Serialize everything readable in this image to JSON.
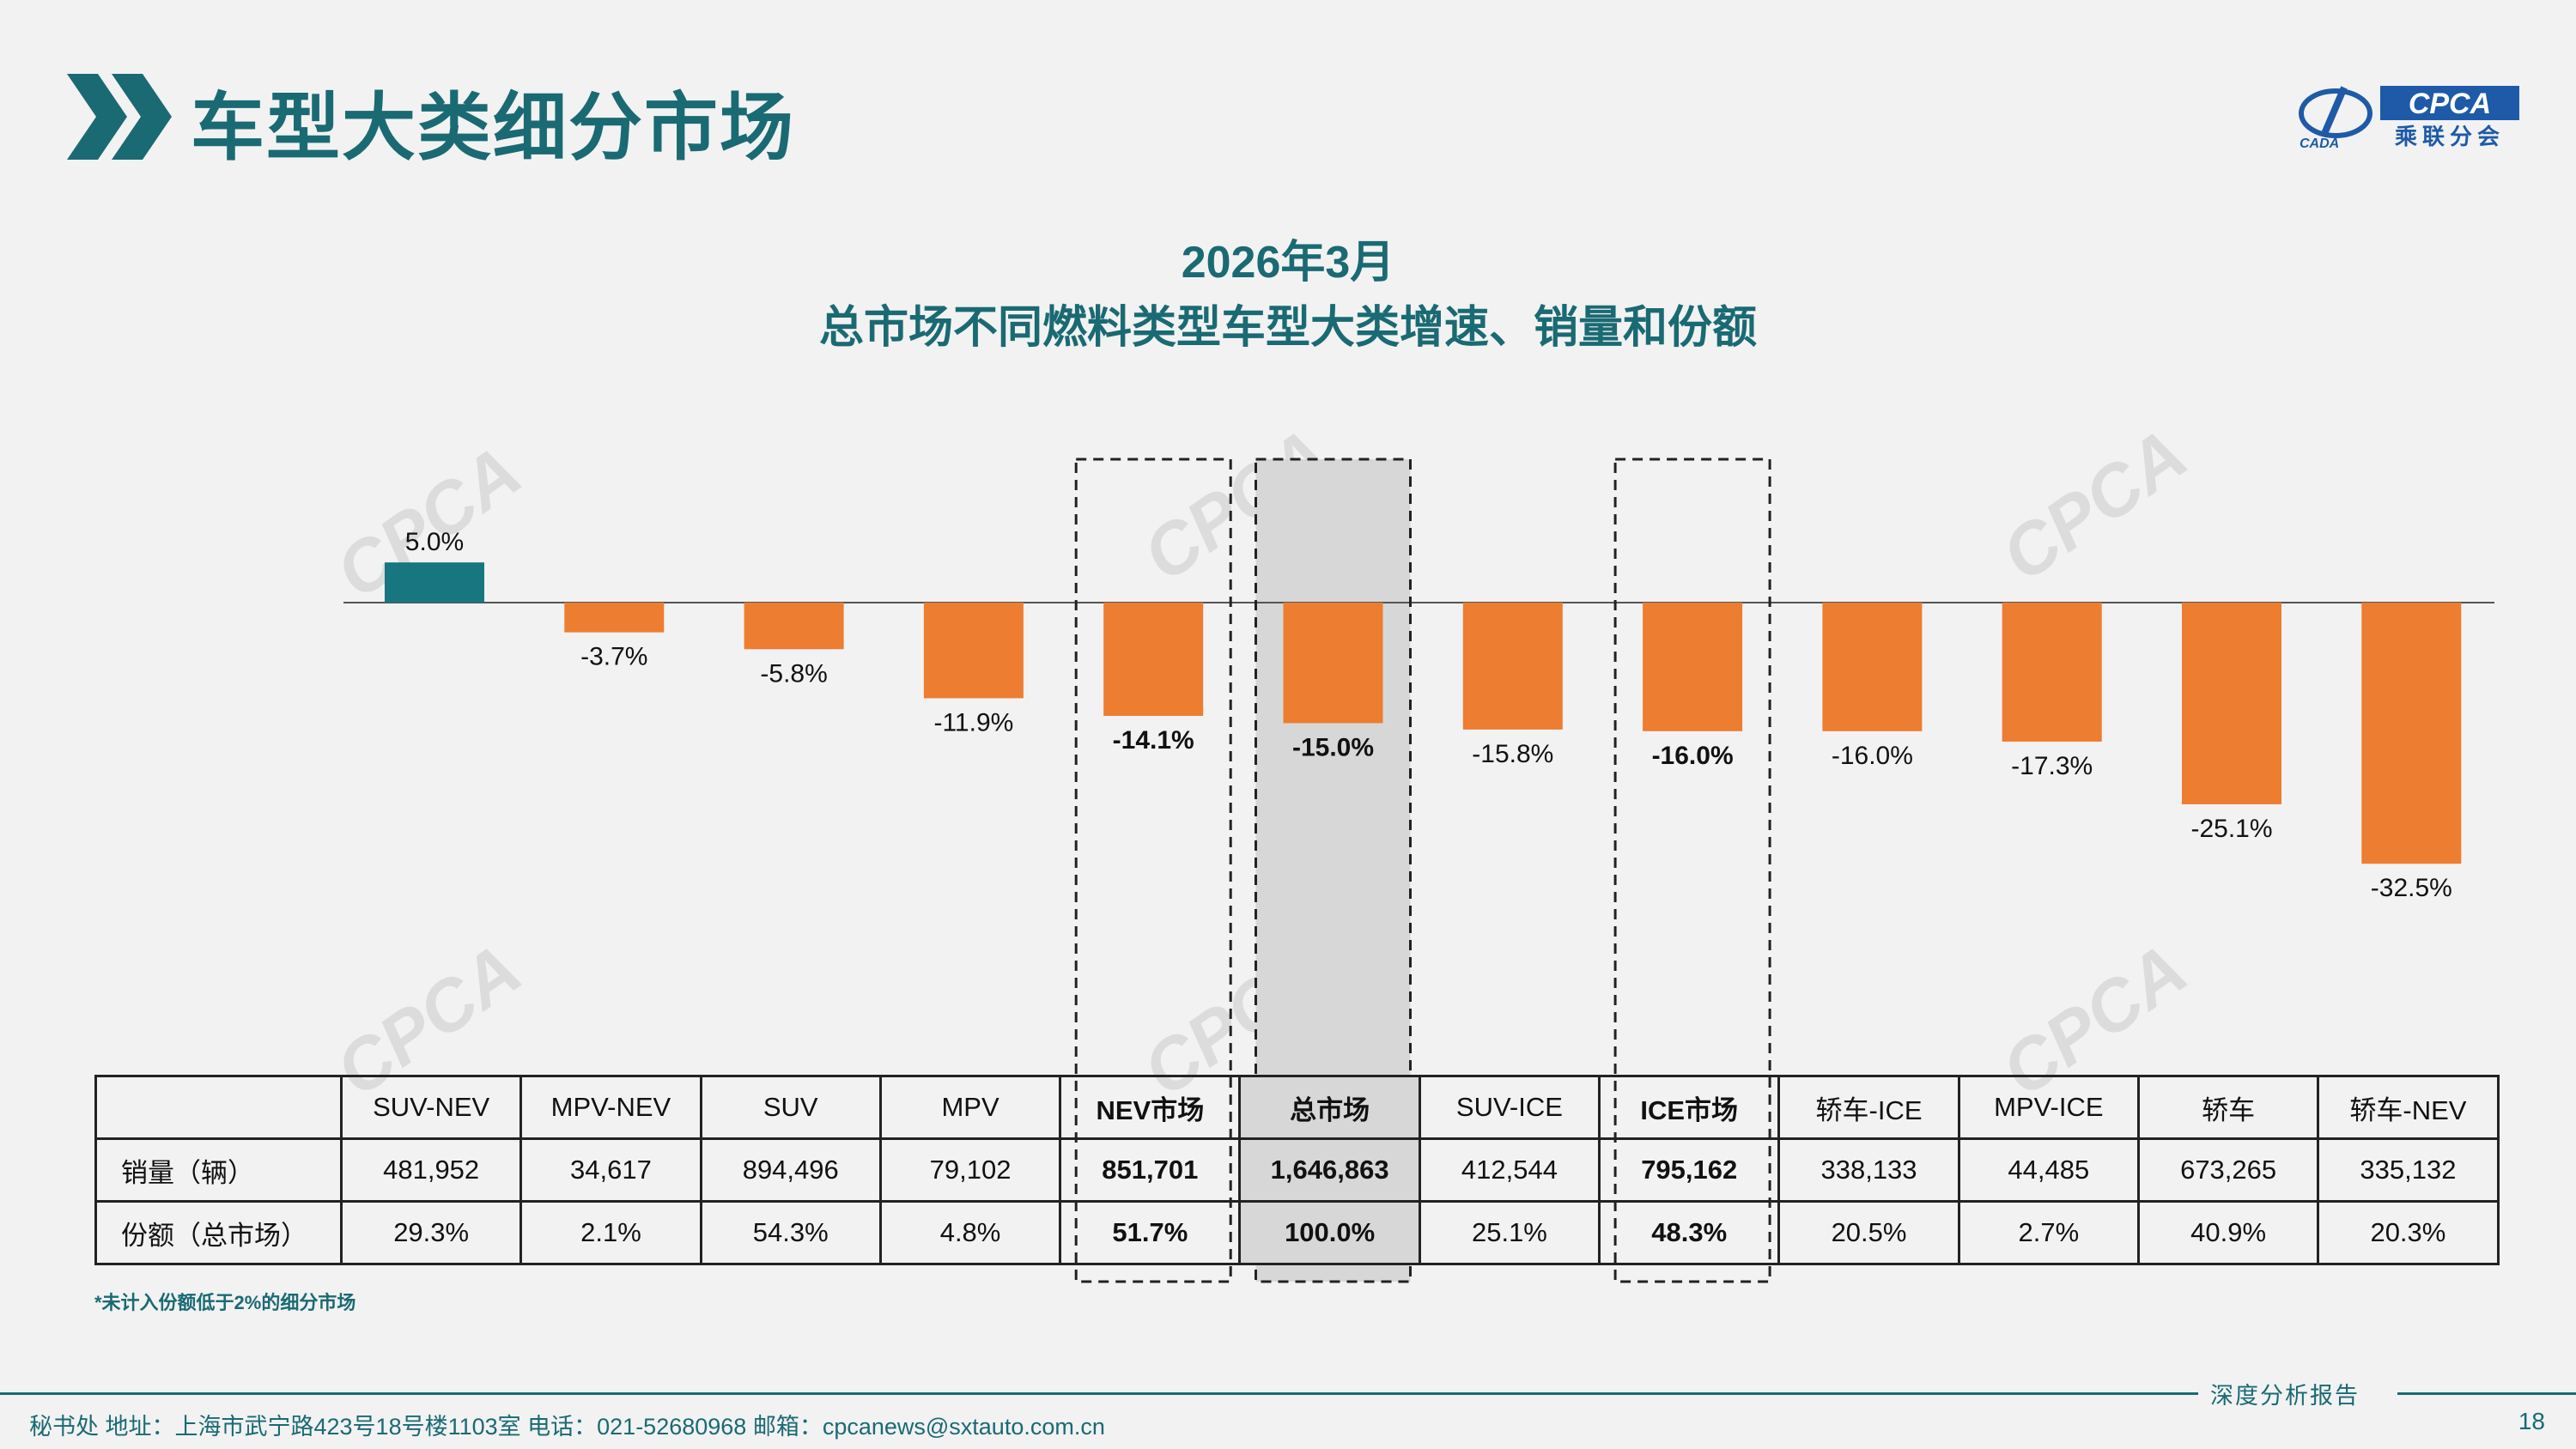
{
  "header": {
    "title": "车型大类细分市场",
    "logo_text": "CPCA",
    "logo_subtitle": "乘联分会",
    "logo_mark": "CADA"
  },
  "chart_title": {
    "line1": "2026年3月",
    "line2": "总市场不同燃料类型车型大类增速、销量和份额"
  },
  "colors": {
    "positive": "#177680",
    "negative": "#ed7d31",
    "accent": "#1a6a73",
    "highlight_bg": "#d7d7d7"
  },
  "chart_data": {
    "type": "bar",
    "title": "2026年3月 总市场不同燃料类型车型大类增速、销量和份额",
    "categories": [
      "SUV-NEV",
      "MPV-NEV",
      "SUV",
      "MPV",
      "NEV市场",
      "总市场",
      "SUV-ICE",
      "ICE市场",
      "轿车-ICE",
      "MPV-ICE",
      "轿车",
      "轿车-NEV"
    ],
    "values": [
      5.0,
      -3.7,
      -5.8,
      -11.9,
      -14.1,
      -15.0,
      -15.8,
      -16.0,
      -16.0,
      -17.3,
      -25.1,
      -32.5
    ],
    "value_labels": [
      "5.0%",
      "-3.7%",
      "-5.8%",
      "-11.9%",
      "-14.1%",
      "-15.0%",
      "-15.8%",
      "-16.0%",
      "-16.0%",
      "-17.3%",
      "-25.1%",
      "-32.5%"
    ],
    "unit": "%",
    "bold_categories": [
      4,
      5,
      7
    ],
    "highlight_shaded": [
      5
    ],
    "highlight_dashed": [
      4,
      5,
      7
    ],
    "xlabel": "",
    "ylabel": "",
    "ylim": [
      -35,
      6
    ],
    "legend": "none",
    "grid": false
  },
  "table": {
    "row_labels": [
      "销量（辆）",
      "份额（总市场）"
    ],
    "sales": [
      "481,952",
      "34,617",
      "894,496",
      "79,102",
      "851,701",
      "1,646,863",
      "412,544",
      "795,162",
      "338,133",
      "44,485",
      "673,265",
      "335,132"
    ],
    "shares": [
      "29.3%",
      "2.1%",
      "54.3%",
      "4.8%",
      "51.7%",
      "100.0%",
      "25.1%",
      "48.3%",
      "20.5%",
      "2.7%",
      "40.9%",
      "20.3%"
    ]
  },
  "footnote": "*未计入份额低于2%的细分市场",
  "footer": {
    "contact": "秘书处   地址：上海市武宁路423号18号楼1103室  电话：021-52680968   邮箱：cpcanews@sxtauto.com.cn",
    "report_label": "深度分析报告",
    "page_number": "18"
  }
}
